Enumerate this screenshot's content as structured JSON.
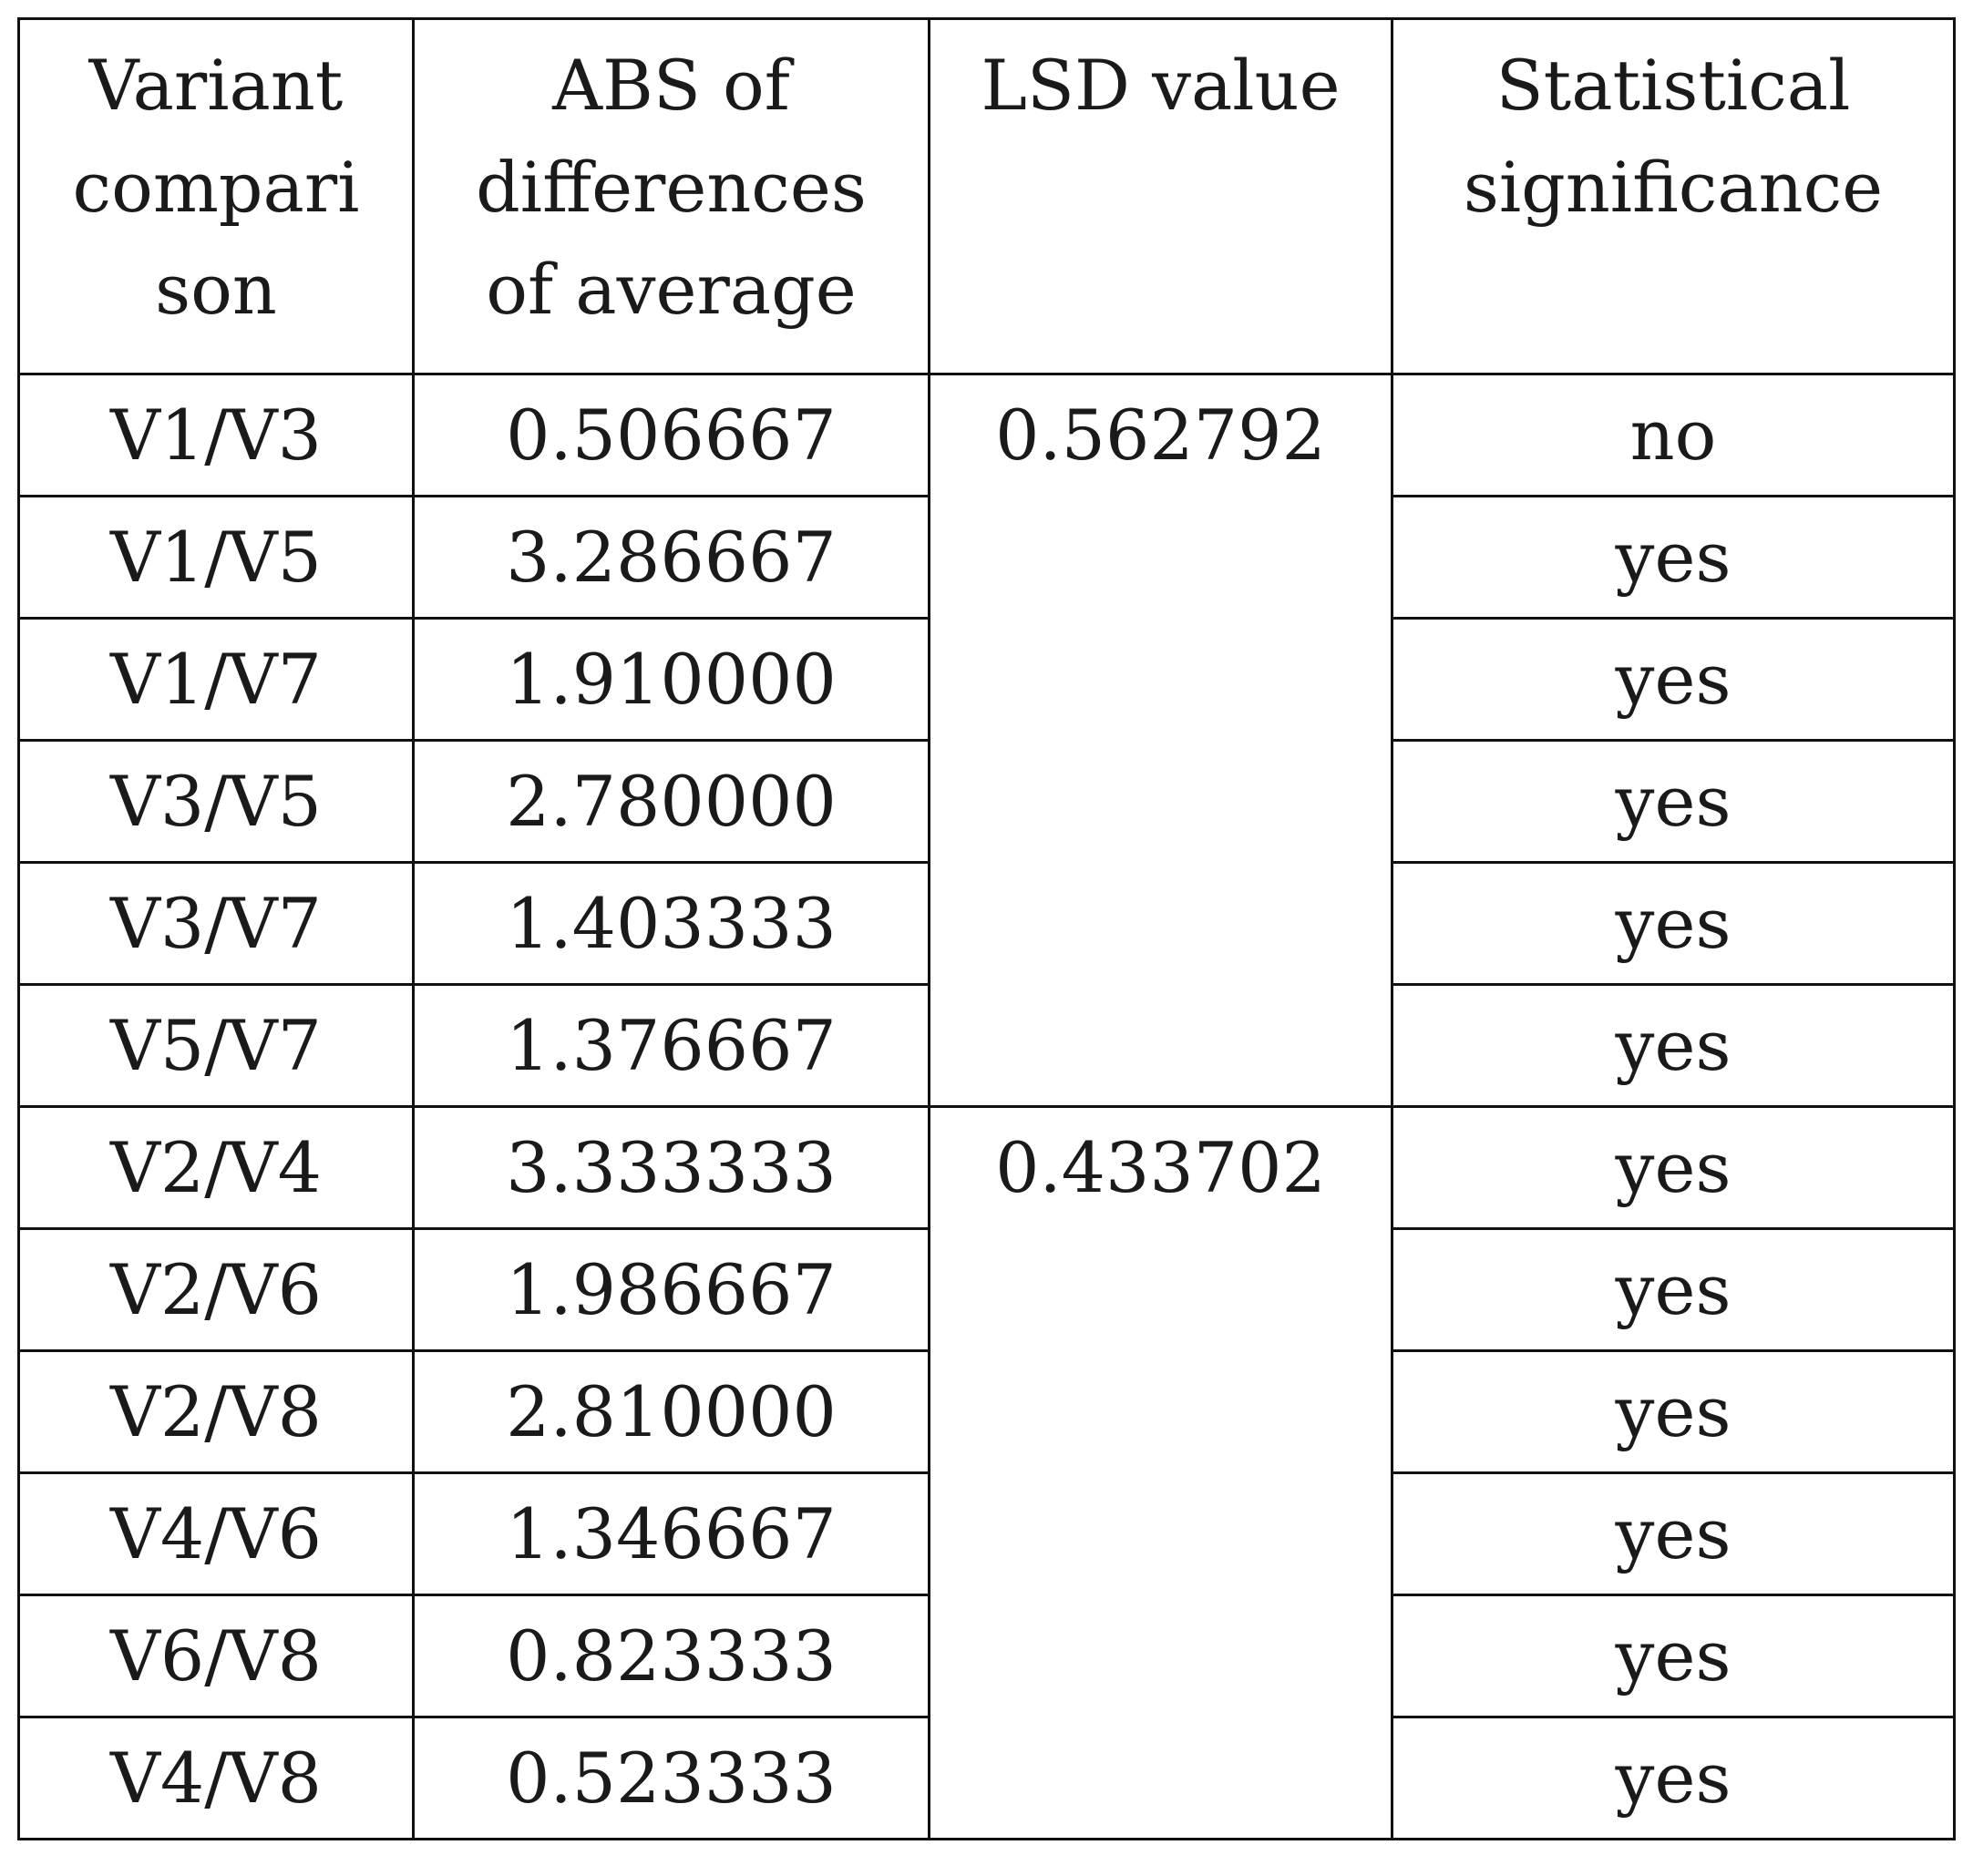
{
  "table": {
    "headers": [
      [
        "Variant",
        "compari",
        "son"
      ],
      [
        "ABS of",
        "differences",
        "of average"
      ],
      [
        "LSD value"
      ],
      [
        "Statistical",
        "significance"
      ]
    ],
    "rows": [
      {
        "comparison": "V1/V3",
        "abs": "0.506667",
        "significance": "no"
      },
      {
        "comparison": "V1/V5",
        "abs": "3.286667",
        "significance": "yes"
      },
      {
        "comparison": "V1/V7",
        "abs": "1.910000",
        "significance": "yes"
      },
      {
        "comparison": "V3/V5",
        "abs": "2.780000",
        "significance": "yes"
      },
      {
        "comparison": "V3/V7",
        "abs": "1.403333",
        "significance": "yes"
      },
      {
        "comparison": "V5/V7",
        "abs": "1.376667",
        "significance": "yes"
      },
      {
        "comparison": "V2/V4",
        "abs": "3.333333",
        "significance": "yes"
      },
      {
        "comparison": "V2/V6",
        "abs": "1.986667",
        "significance": "yes"
      },
      {
        "comparison": "V2/V8",
        "abs": "2.810000",
        "significance": "yes"
      },
      {
        "comparison": "V4/V6",
        "abs": "1.346667",
        "significance": "yes"
      },
      {
        "comparison": "V6/V8",
        "abs": "0.823333",
        "significance": "yes"
      },
      {
        "comparison": "V4/V8",
        "abs": "0.523333",
        "significance": "yes"
      }
    ],
    "lsd_values": [
      "0.562792",
      "0.433702"
    ]
  }
}
